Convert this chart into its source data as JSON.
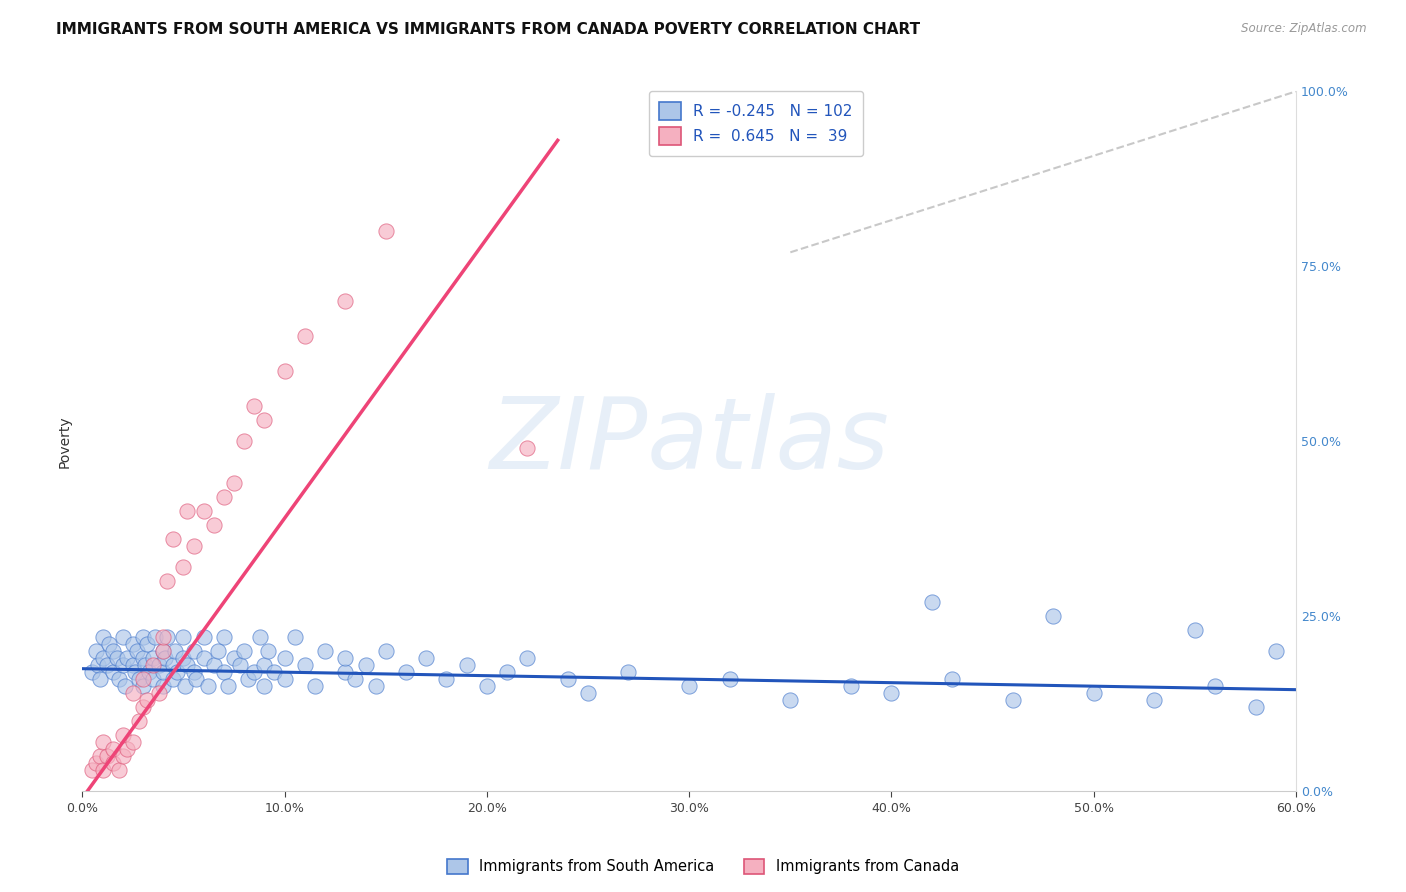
{
  "title": "IMMIGRANTS FROM SOUTH AMERICA VS IMMIGRANTS FROM CANADA POVERTY CORRELATION CHART",
  "source": "Source: ZipAtlas.com",
  "ylabel": "Poverty",
  "xlim": [
    0.0,
    0.6
  ],
  "ylim": [
    0.0,
    1.0
  ],
  "xticks": [
    0.0,
    0.1,
    0.2,
    0.3,
    0.4,
    0.5,
    0.6
  ],
  "xticklabels": [
    "0.0%",
    "10.0%",
    "20.0%",
    "30.0%",
    "40.0%",
    "50.0%",
    "60.0%"
  ],
  "yticks_right": [
    0.0,
    0.25,
    0.5,
    0.75,
    1.0
  ],
  "yticklabels_right": [
    "0.0%",
    "25.0%",
    "50.0%",
    "75.0%",
    "100.0%"
  ],
  "watermark": "ZIPatlas",
  "r1": "-0.245",
  "n1": "102",
  "r2": "0.645",
  "n2": "39",
  "color_sa_face": "#adc6e8",
  "color_sa_edge": "#4477cc",
  "color_ca_face": "#f5b0c0",
  "color_ca_edge": "#dd5577",
  "color_line_sa": "#2255bb",
  "color_line_ca": "#ee4477",
  "color_diag": "#bbbbbb",
  "color_ytick": "#4488cc",
  "color_xtick": "#444444",
  "title_fontsize": 11,
  "tick_fontsize": 9,
  "legend_fontsize": 11,
  "sa_line_intercept": 0.175,
  "sa_line_slope": -0.05,
  "ca_line_intercept": -0.01,
  "ca_line_slope": 4.0,
  "south_america_x": [
    0.005,
    0.007,
    0.008,
    0.009,
    0.01,
    0.01,
    0.012,
    0.013,
    0.015,
    0.015,
    0.017,
    0.018,
    0.02,
    0.02,
    0.021,
    0.022,
    0.025,
    0.025,
    0.026,
    0.027,
    0.028,
    0.03,
    0.03,
    0.03,
    0.031,
    0.032,
    0.033,
    0.035,
    0.035,
    0.036,
    0.038,
    0.04,
    0.04,
    0.04,
    0.041,
    0.042,
    0.045,
    0.045,
    0.046,
    0.047,
    0.05,
    0.05,
    0.051,
    0.052,
    0.055,
    0.055,
    0.056,
    0.06,
    0.06,
    0.062,
    0.065,
    0.067,
    0.07,
    0.07,
    0.072,
    0.075,
    0.078,
    0.08,
    0.082,
    0.085,
    0.088,
    0.09,
    0.09,
    0.092,
    0.095,
    0.1,
    0.1,
    0.105,
    0.11,
    0.115,
    0.12,
    0.13,
    0.13,
    0.135,
    0.14,
    0.145,
    0.15,
    0.16,
    0.17,
    0.18,
    0.19,
    0.2,
    0.21,
    0.22,
    0.24,
    0.25,
    0.27,
    0.3,
    0.32,
    0.35,
    0.38,
    0.4,
    0.43,
    0.46,
    0.5,
    0.53,
    0.56,
    0.58,
    0.42,
    0.55,
    0.59,
    0.48
  ],
  "south_america_y": [
    0.17,
    0.2,
    0.18,
    0.16,
    0.19,
    0.22,
    0.18,
    0.21,
    0.17,
    0.2,
    0.19,
    0.16,
    0.18,
    0.22,
    0.15,
    0.19,
    0.18,
    0.21,
    0.17,
    0.2,
    0.16,
    0.19,
    0.22,
    0.15,
    0.18,
    0.21,
    0.17,
    0.19,
    0.16,
    0.22,
    0.18,
    0.2,
    0.15,
    0.17,
    0.19,
    0.22,
    0.18,
    0.16,
    0.2,
    0.17,
    0.19,
    0.22,
    0.15,
    0.18,
    0.2,
    0.17,
    0.16,
    0.19,
    0.22,
    0.15,
    0.18,
    0.2,
    0.17,
    0.22,
    0.15,
    0.19,
    0.18,
    0.2,
    0.16,
    0.17,
    0.22,
    0.18,
    0.15,
    0.2,
    0.17,
    0.19,
    0.16,
    0.22,
    0.18,
    0.15,
    0.2,
    0.17,
    0.19,
    0.16,
    0.18,
    0.15,
    0.2,
    0.17,
    0.19,
    0.16,
    0.18,
    0.15,
    0.17,
    0.19,
    0.16,
    0.14,
    0.17,
    0.15,
    0.16,
    0.13,
    0.15,
    0.14,
    0.16,
    0.13,
    0.14,
    0.13,
    0.15,
    0.12,
    0.27,
    0.23,
    0.2,
    0.25
  ],
  "canada_x": [
    0.005,
    0.007,
    0.009,
    0.01,
    0.01,
    0.012,
    0.015,
    0.015,
    0.018,
    0.02,
    0.02,
    0.022,
    0.025,
    0.025,
    0.028,
    0.03,
    0.03,
    0.032,
    0.035,
    0.038,
    0.04,
    0.04,
    0.042,
    0.045,
    0.05,
    0.052,
    0.055,
    0.06,
    0.065,
    0.07,
    0.075,
    0.08,
    0.085,
    0.09,
    0.1,
    0.11,
    0.13,
    0.15,
    0.22
  ],
  "canada_y": [
    0.03,
    0.04,
    0.05,
    0.03,
    0.07,
    0.05,
    0.04,
    0.06,
    0.03,
    0.05,
    0.08,
    0.06,
    0.14,
    0.07,
    0.1,
    0.12,
    0.16,
    0.13,
    0.18,
    0.14,
    0.2,
    0.22,
    0.3,
    0.36,
    0.32,
    0.4,
    0.35,
    0.4,
    0.38,
    0.42,
    0.44,
    0.5,
    0.55,
    0.53,
    0.6,
    0.65,
    0.7,
    0.8,
    0.49
  ]
}
